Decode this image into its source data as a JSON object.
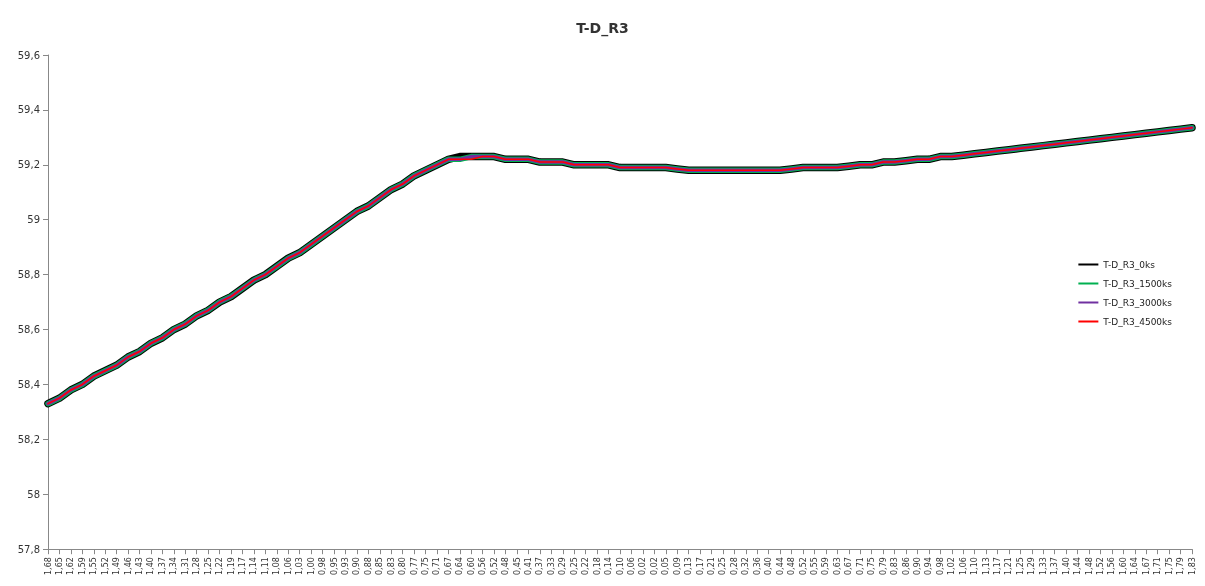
{
  "chart_data": {
    "type": "line",
    "title": "T-D_R3",
    "categories": [
      "1,68",
      "1,65",
      "1,62",
      "1,59",
      "1,55",
      "1,52",
      "1,49",
      "1,46",
      "1,43",
      "1,40",
      "1,37",
      "1,34",
      "1,31",
      "1,28",
      "1,25",
      "1,22",
      "1,19",
      "1,17",
      "1,14",
      "1,11",
      "1,08",
      "1,06",
      "1,03",
      "1,00",
      "0,98",
      "0,95",
      "0,93",
      "0,90",
      "0,88",
      "0,85",
      "0,83",
      "0,80",
      "0,77",
      "0,75",
      "0,71",
      "0,67",
      "0,64",
      "0,60",
      "0,56",
      "0,52",
      "0,48",
      "0,45",
      "0,41",
      "0,37",
      "0,33",
      "0,29",
      "0,25",
      "0,22",
      "0,18",
      "0,14",
      "0,10",
      "0,06",
      "0,02",
      "0,02",
      "0,05",
      "0,09",
      "0,13",
      "0,17",
      "0,21",
      "0,25",
      "0,28",
      "0,32",
      "0,36",
      "0,40",
      "0,44",
      "0,48",
      "0,52",
      "0,55",
      "0,59",
      "0,63",
      "0,67",
      "0,71",
      "0,75",
      "0,79",
      "0,83",
      "0,86",
      "0,90",
      "0,94",
      "0,98",
      "1,02",
      "1,06",
      "1,10",
      "1,13",
      "1,17",
      "1,21",
      "1,25",
      "1,29",
      "1,33",
      "1,37",
      "1,40",
      "1,44",
      "1,48",
      "1,52",
      "1,56",
      "1,60",
      "1,64",
      "1,67",
      "1,71",
      "1,75",
      "1,79",
      "1,83"
    ],
    "series": [
      {
        "name": "T-D_R3_0ks",
        "color": "#000000",
        "values": [
          58.33,
          58.35,
          58.38,
          58.4,
          58.43,
          58.45,
          58.47,
          58.5,
          58.52,
          58.55,
          58.57,
          58.6,
          58.62,
          58.65,
          58.67,
          58.7,
          58.72,
          58.75,
          58.78,
          58.8,
          58.83,
          58.86,
          58.88,
          58.91,
          58.94,
          58.97,
          59.0,
          59.03,
          59.05,
          59.08,
          59.11,
          59.13,
          59.16,
          59.18,
          59.2,
          59.22,
          59.23,
          59.23,
          59.23,
          59.23,
          59.22,
          59.22,
          59.22,
          59.21,
          59.21,
          59.21,
          59.2,
          59.2,
          59.2,
          59.2,
          59.19,
          59.19,
          59.19,
          59.19,
          59.19,
          59.185,
          59.18,
          59.18,
          59.18,
          59.18,
          59.18,
          59.18,
          59.18,
          59.18,
          59.18,
          59.185,
          59.19,
          59.19,
          59.19,
          59.19,
          59.195,
          59.2,
          59.2,
          59.21,
          59.21,
          59.215,
          59.22,
          59.22,
          59.23,
          59.23,
          59.235,
          59.24,
          59.245,
          59.25,
          59.255,
          59.26,
          59.265,
          59.27,
          59.275,
          59.28,
          59.285,
          59.29,
          59.295,
          59.3,
          59.305,
          59.31,
          59.315,
          59.32,
          59.325,
          59.33,
          59.335
        ]
      },
      {
        "name": "T-D_R3_1500ks",
        "color": "#00b050",
        "values": [
          58.33,
          58.35,
          58.38,
          58.4,
          58.43,
          58.45,
          58.47,
          58.5,
          58.52,
          58.55,
          58.57,
          58.6,
          58.62,
          58.65,
          58.67,
          58.7,
          58.72,
          58.75,
          58.78,
          58.8,
          58.83,
          58.86,
          58.88,
          58.91,
          58.94,
          58.97,
          59.0,
          59.03,
          59.05,
          59.08,
          59.11,
          59.13,
          59.16,
          59.18,
          59.2,
          59.22,
          59.22,
          59.23,
          59.23,
          59.23,
          59.22,
          59.22,
          59.22,
          59.21,
          59.21,
          59.21,
          59.2,
          59.2,
          59.2,
          59.2,
          59.19,
          59.19,
          59.19,
          59.19,
          59.19,
          59.185,
          59.18,
          59.18,
          59.18,
          59.18,
          59.18,
          59.18,
          59.18,
          59.18,
          59.18,
          59.185,
          59.19,
          59.19,
          59.19,
          59.19,
          59.195,
          59.2,
          59.2,
          59.21,
          59.21,
          59.215,
          59.22,
          59.22,
          59.23,
          59.23,
          59.235,
          59.24,
          59.245,
          59.25,
          59.255,
          59.26,
          59.265,
          59.27,
          59.275,
          59.28,
          59.285,
          59.29,
          59.295,
          59.3,
          59.305,
          59.31,
          59.315,
          59.32,
          59.325,
          59.33,
          59.335
        ]
      },
      {
        "name": "T-D_R3_3000ks",
        "color": "#7030a0",
        "values": [
          58.33,
          58.35,
          58.38,
          58.4,
          58.43,
          58.45,
          58.47,
          58.5,
          58.52,
          58.55,
          58.57,
          58.6,
          58.62,
          58.65,
          58.67,
          58.7,
          58.72,
          58.75,
          58.78,
          58.8,
          58.83,
          58.86,
          58.88,
          58.91,
          58.94,
          58.97,
          59.0,
          59.03,
          59.05,
          59.08,
          59.11,
          59.13,
          59.16,
          59.18,
          59.2,
          59.22,
          59.22,
          59.23,
          59.23,
          59.23,
          59.22,
          59.22,
          59.22,
          59.21,
          59.21,
          59.21,
          59.2,
          59.2,
          59.2,
          59.2,
          59.19,
          59.19,
          59.19,
          59.19,
          59.19,
          59.185,
          59.18,
          59.18,
          59.18,
          59.18,
          59.18,
          59.18,
          59.18,
          59.18,
          59.18,
          59.185,
          59.19,
          59.19,
          59.19,
          59.19,
          59.195,
          59.2,
          59.2,
          59.21,
          59.21,
          59.215,
          59.22,
          59.22,
          59.23,
          59.23,
          59.235,
          59.24,
          59.245,
          59.25,
          59.255,
          59.26,
          59.265,
          59.27,
          59.275,
          59.28,
          59.285,
          59.29,
          59.295,
          59.3,
          59.305,
          59.31,
          59.315,
          59.32,
          59.325,
          59.33,
          59.335
        ]
      },
      {
        "name": "T-D_R3_4500ks",
        "color": "#ff0000",
        "values": [
          58.33,
          58.35,
          58.38,
          58.4,
          58.43,
          58.45,
          58.47,
          58.5,
          58.52,
          58.55,
          58.57,
          58.6,
          58.62,
          58.65,
          58.67,
          58.7,
          58.72,
          58.75,
          58.78,
          58.8,
          58.83,
          58.86,
          58.88,
          58.91,
          58.94,
          58.97,
          59.0,
          59.03,
          59.05,
          59.08,
          59.11,
          59.13,
          59.16,
          59.18,
          59.2,
          59.22,
          59.22,
          59.22,
          59.23,
          59.23,
          59.22,
          59.22,
          59.22,
          59.21,
          59.21,
          59.21,
          59.2,
          59.2,
          59.2,
          59.2,
          59.19,
          59.19,
          59.19,
          59.19,
          59.19,
          59.185,
          59.18,
          59.18,
          59.18,
          59.18,
          59.18,
          59.18,
          59.18,
          59.18,
          59.18,
          59.185,
          59.19,
          59.19,
          59.19,
          59.19,
          59.195,
          59.2,
          59.2,
          59.21,
          59.21,
          59.215,
          59.22,
          59.22,
          59.23,
          59.23,
          59.235,
          59.24,
          59.245,
          59.25,
          59.255,
          59.26,
          59.265,
          59.27,
          59.275,
          59.28,
          59.285,
          59.29,
          59.295,
          59.3,
          59.305,
          59.31,
          59.315,
          59.32,
          59.325,
          59.33,
          59.335
        ]
      }
    ],
    "ylim": [
      57.8,
      59.6
    ],
    "yticks": [
      {
        "value": 57.8,
        "label": "57,8"
      },
      58,
      {
        "value": 58.2,
        "label": "58,2"
      },
      {
        "value": 58.4,
        "label": "58,4"
      },
      {
        "value": 58.6,
        "label": "58,6"
      },
      {
        "value": 58.8,
        "label": "58,8"
      },
      59,
      {
        "value": 59.2,
        "label": "59,2"
      },
      {
        "value": 59.4,
        "label": "59,4"
      },
      {
        "value": 59.6,
        "label": "59,6"
      }
    ],
    "grid": false,
    "legend": "right",
    "marker": "none",
    "line_style": "solid"
  }
}
